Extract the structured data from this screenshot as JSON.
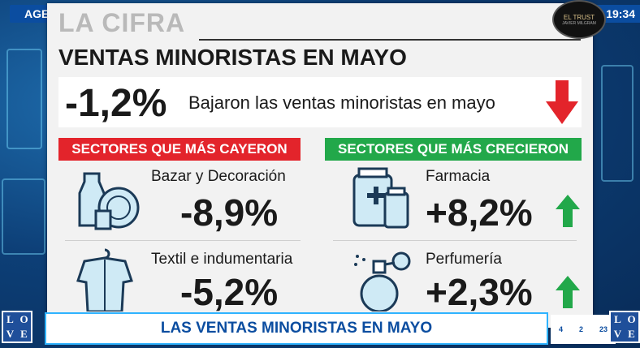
{
  "broadcast": {
    "show_tag": "AGENDA PYME",
    "clock": "19:34",
    "logo_line1": "EL TRUST",
    "logo_line2": "JAVIER MILGRAM",
    "ticker": "LAS VENTAS MINORISTAS EN MAYO",
    "love_letters": [
      "L",
      "O",
      "V",
      "E"
    ],
    "countdown_values": [
      "4",
      "2",
      "23"
    ]
  },
  "card": {
    "kicker": "LA CIFRA",
    "headline": "VENTAS MINORISTAS EN MAYO",
    "summary_value": "-1,2%",
    "summary_text": "Bajaron las ventas minoristas en mayo",
    "fell": {
      "header": "SECTORES QUE MÁS CAYERON",
      "items": [
        {
          "name": "Bazar y Decoración",
          "value": "-8,9%",
          "icon": "vases-dishes-icon"
        },
        {
          "name": "Textil e indumentaria",
          "value": "-5,2%",
          "icon": "shirt-on-hanger-icon"
        }
      ]
    },
    "grew": {
      "header": "SECTORES QUE MÁS CRECIERON",
      "items": [
        {
          "name": "Farmacia",
          "value": "+8,2%",
          "icon": "medicine-bottles-icon"
        },
        {
          "name": "Perfumería",
          "value": "+2,3%",
          "icon": "perfume-bottle-icon"
        }
      ]
    }
  },
  "colors": {
    "red": "#e3242b",
    "green": "#22a84a",
    "brand_blue": "#0b4da0"
  }
}
